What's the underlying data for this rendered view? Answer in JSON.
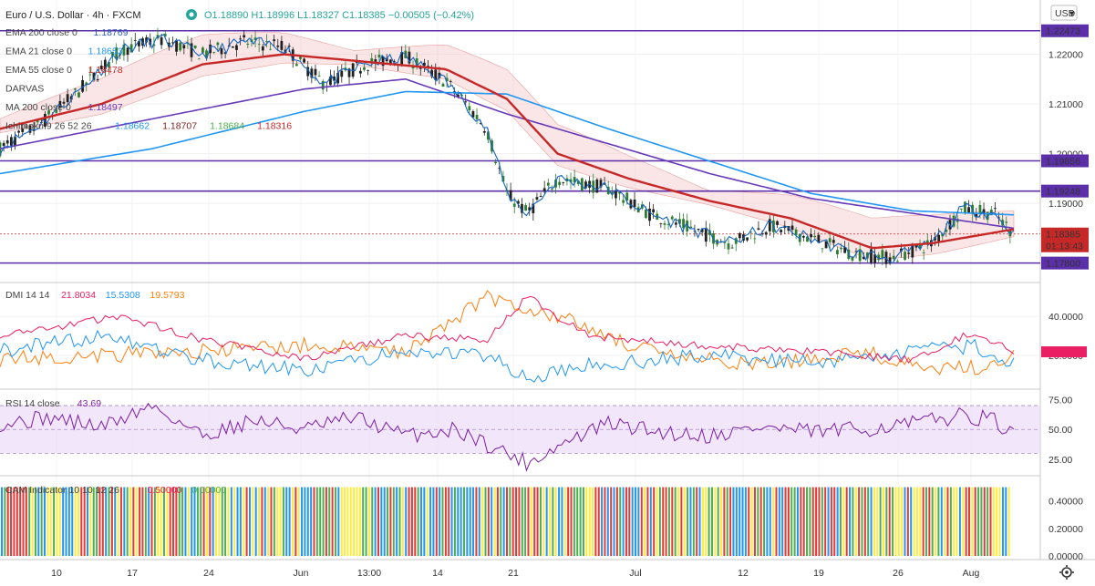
{
  "header": {
    "title": "Euro / U.S. Dollar · 4h · FXCM",
    "ohlc": "O1.18890 H1.18996 L1.18327 C1.18385 −0.00505 (−0.42%)",
    "currency": "USD"
  },
  "legend": [
    {
      "name": "EMA 200 close 0",
      "value": "1.18769",
      "color": "#2f5bb7"
    },
    {
      "name": "EMA 21 close 0",
      "value": "1.18653",
      "color": "#2196f3"
    },
    {
      "name": "EMA 55 close 0",
      "value": "1.18478",
      "color": "#c62828"
    },
    {
      "name": "DARVAS",
      "value": "",
      "color": "#999999"
    },
    {
      "name": "MA 200 close 0",
      "value": "1.18497",
      "color": "#673ab7"
    },
    {
      "name": "Ichimoku 9 26 52 26",
      "values": [
        "1.18662",
        "1.18707",
        "1.18684",
        "1.18316"
      ],
      "colors": [
        "#2196f3",
        "#7b1f1f",
        "#4caf50",
        "#c62828"
      ]
    }
  ],
  "price_axis": {
    "ticks": [
      "1.22000",
      "1.21000",
      "1.20000",
      "1.19000"
    ],
    "tags": [
      {
        "label": "1.22473",
        "color": "#5b2fa8"
      },
      {
        "label": "1.19856",
        "color": "#5b2fa8"
      },
      {
        "label": "1.19248",
        "color": "#5b2fa8"
      },
      {
        "label": "1.18385",
        "color": "#c62828"
      },
      {
        "label": "01:13:43",
        "color": "#c62828"
      },
      {
        "label": "1.17800",
        "color": "#5b2fa8"
      }
    ]
  },
  "dmi": {
    "label": "DMI 14 14",
    "values": [
      "21.8034",
      "15.5308",
      "19.5793"
    ],
    "colors": [
      "#e91e63",
      "#2196f3",
      "#ff7f0e"
    ],
    "ticks": [
      "40.0000",
      "20.0000"
    ]
  },
  "rsi": {
    "label": "RSI 14 close",
    "value": "43.69",
    "ticks": [
      "75.00",
      "50.00",
      "25.00"
    ]
  },
  "cam": {
    "label": "CAM Indicator 10 10 12 26",
    "values": [
      "0.50000",
      "0.00000"
    ],
    "ticks": [
      "0.40000",
      "0.20000",
      "0.00000"
    ]
  },
  "time_axis": [
    "10",
    "17",
    "24",
    "Jun",
    "13:00",
    "14",
    "21",
    "Jul",
    "12",
    "19",
    "26",
    "Aug"
  ],
  "chart_data": {
    "type": "line",
    "title": "Euro / U.S. Dollar · 4h · FXCM",
    "horizontal_levels": [
      1.22473,
      1.19856,
      1.19248,
      1.178
    ],
    "last_price": 1.18385,
    "price_range": [
      1.175,
      1.23
    ],
    "ema200_path": [
      [
        0,
        1.196
      ],
      [
        0.15,
        1.201
      ],
      [
        0.3,
        1.2085
      ],
      [
        0.4,
        1.2125
      ],
      [
        0.5,
        1.212
      ],
      [
        0.6,
        1.205
      ],
      [
        0.7,
        1.1985
      ],
      [
        0.8,
        1.192
      ],
      [
        0.9,
        1.1885
      ],
      [
        1.0,
        1.1877
      ]
    ],
    "ma200_path": [
      [
        0,
        1.201
      ],
      [
        0.15,
        1.207
      ],
      [
        0.3,
        1.213
      ],
      [
        0.4,
        1.215
      ],
      [
        0.5,
        1.208
      ],
      [
        0.6,
        1.202
      ],
      [
        0.7,
        1.196
      ],
      [
        0.8,
        1.191
      ],
      [
        0.9,
        1.188
      ],
      [
        1.0,
        1.185
      ]
    ],
    "ema55_path": [
      [
        0,
        1.205
      ],
      [
        0.1,
        1.21
      ],
      [
        0.2,
        1.218
      ],
      [
        0.28,
        1.22
      ],
      [
        0.36,
        1.2185
      ],
      [
        0.44,
        1.217
      ],
      [
        0.5,
        1.211
      ],
      [
        0.55,
        1.2
      ],
      [
        0.62,
        1.195
      ],
      [
        0.7,
        1.1905
      ],
      [
        0.78,
        1.187
      ],
      [
        0.86,
        1.181
      ],
      [
        0.92,
        1.182
      ],
      [
        1.0,
        1.1848
      ]
    ],
    "price_path": [
      [
        0,
        1.201
      ],
      [
        0.04,
        1.206
      ],
      [
        0.08,
        1.213
      ],
      [
        0.12,
        1.221
      ],
      [
        0.16,
        1.223
      ],
      [
        0.2,
        1.22
      ],
      [
        0.24,
        1.2225
      ],
      [
        0.28,
        1.2215
      ],
      [
        0.32,
        1.214
      ],
      [
        0.36,
        1.218
      ],
      [
        0.4,
        1.2195
      ],
      [
        0.44,
        1.2145
      ],
      [
        0.46,
        1.21
      ],
      [
        0.48,
        1.205
      ],
      [
        0.5,
        1.192
      ],
      [
        0.52,
        1.188
      ],
      [
        0.55,
        1.195
      ],
      [
        0.6,
        1.193
      ],
      [
        0.64,
        1.188
      ],
      [
        0.68,
        1.185
      ],
      [
        0.72,
        1.182
      ],
      [
        0.76,
        1.1855
      ],
      [
        0.8,
        1.183
      ],
      [
        0.84,
        1.18
      ],
      [
        0.88,
        1.179
      ],
      [
        0.92,
        1.182
      ],
      [
        0.95,
        1.189
      ],
      [
        0.98,
        1.188
      ],
      [
        1.0,
        1.1838
      ]
    ],
    "dmi_range": [
      5,
      55
    ],
    "dmi_plus_path": [
      [
        0,
        30
      ],
      [
        0.12,
        40
      ],
      [
        0.2,
        28
      ],
      [
        0.3,
        18
      ],
      [
        0.4,
        30
      ],
      [
        0.48,
        28
      ],
      [
        0.52,
        50
      ],
      [
        0.58,
        30
      ],
      [
        0.7,
        25
      ],
      [
        0.8,
        22
      ],
      [
        0.9,
        18
      ],
      [
        0.96,
        32
      ],
      [
        1.0,
        21.8
      ]
    ],
    "dmi_minus_path": [
      [
        0,
        22
      ],
      [
        0.1,
        30
      ],
      [
        0.2,
        18
      ],
      [
        0.3,
        12
      ],
      [
        0.4,
        22
      ],
      [
        0.48,
        20
      ],
      [
        0.52,
        8
      ],
      [
        0.58,
        15
      ],
      [
        0.7,
        20
      ],
      [
        0.8,
        16
      ],
      [
        0.9,
        22
      ],
      [
        0.96,
        25
      ],
      [
        1.0,
        15.5
      ]
    ],
    "adx_path": [
      [
        0,
        18
      ],
      [
        0.1,
        20
      ],
      [
        0.2,
        22
      ],
      [
        0.3,
        25
      ],
      [
        0.4,
        22
      ],
      [
        0.48,
        50
      ],
      [
        0.55,
        40
      ],
      [
        0.65,
        20
      ],
      [
        0.75,
        15
      ],
      [
        0.85,
        22
      ],
      [
        0.92,
        12
      ],
      [
        0.98,
        15
      ],
      [
        1.0,
        19.6
      ]
    ],
    "rsi_range": [
      15,
      80
    ],
    "rsi_path": [
      [
        0,
        55
      ],
      [
        0.05,
        60
      ],
      [
        0.1,
        52
      ],
      [
        0.15,
        70
      ],
      [
        0.2,
        45
      ],
      [
        0.25,
        58
      ],
      [
        0.3,
        50
      ],
      [
        0.35,
        60
      ],
      [
        0.4,
        45
      ],
      [
        0.45,
        50
      ],
      [
        0.48,
        38
      ],
      [
        0.52,
        22
      ],
      [
        0.56,
        40
      ],
      [
        0.6,
        55
      ],
      [
        0.65,
        48
      ],
      [
        0.7,
        45
      ],
      [
        0.75,
        52
      ],
      [
        0.8,
        48
      ],
      [
        0.85,
        50
      ],
      [
        0.9,
        55
      ],
      [
        0.95,
        62
      ],
      [
        0.98,
        58
      ],
      [
        1.0,
        43.69
      ]
    ],
    "cam_colors": [
      "#2196f3",
      "#4caf50",
      "#ffeb3b",
      "#e53935"
    ]
  }
}
